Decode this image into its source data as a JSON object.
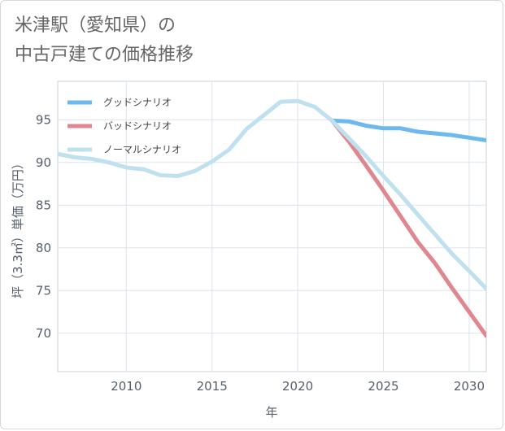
{
  "page": {
    "title_line1": "米津駅（愛知県）の",
    "title_line2": "中古戸建ての価格推移"
  },
  "chart_data": {
    "type": "line",
    "title": "米津駅（愛知県）の中古戸建ての価格推移",
    "xlabel": "年",
    "ylabel": "坪（3.3㎡）単価（万円）",
    "xlim": [
      2006,
      2031
    ],
    "ylim": [
      65.5,
      99.5
    ],
    "x_ticks": [
      2010,
      2015,
      2020,
      2025,
      2030
    ],
    "y_ticks": [
      70,
      75,
      80,
      85,
      90,
      95
    ],
    "grid": true,
    "legend_position": "top-left",
    "series": [
      {
        "name": "グッドシナリオ",
        "color": "#6cb8ef",
        "x": [
          2022,
          2023,
          2024,
          2025,
          2026,
          2027,
          2028,
          2029,
          2030,
          2031
        ],
        "values": [
          94.9,
          94.8,
          94.3,
          94.0,
          94.0,
          93.6,
          93.4,
          93.2,
          92.9,
          92.6
        ]
      },
      {
        "name": "バッドシナリオ",
        "color": "#e0868f",
        "x": [
          2022,
          2023,
          2024,
          2025,
          2026,
          2027,
          2028,
          2029,
          2030,
          2031
        ],
        "values": [
          94.9,
          92.4,
          89.6,
          86.7,
          83.7,
          80.7,
          78.2,
          75.3,
          72.5,
          69.7
        ]
      },
      {
        "name": "ノーマルシナリオ",
        "color": "#bfe0ee",
        "x": [
          2006,
          2007,
          2008,
          2009,
          2010,
          2011,
          2012,
          2013,
          2014,
          2015,
          2016,
          2017,
          2018,
          2019,
          2020,
          2021,
          2022,
          2023,
          2024,
          2025,
          2026,
          2027,
          2028,
          2029,
          2030,
          2031
        ],
        "values": [
          91.0,
          90.6,
          90.4,
          90.0,
          89.4,
          89.2,
          88.5,
          88.4,
          89.0,
          90.1,
          91.5,
          93.9,
          95.5,
          97.1,
          97.2,
          96.5,
          94.9,
          92.8,
          90.7,
          88.4,
          86.2,
          83.9,
          81.6,
          79.3,
          77.3,
          75.2
        ]
      }
    ]
  }
}
